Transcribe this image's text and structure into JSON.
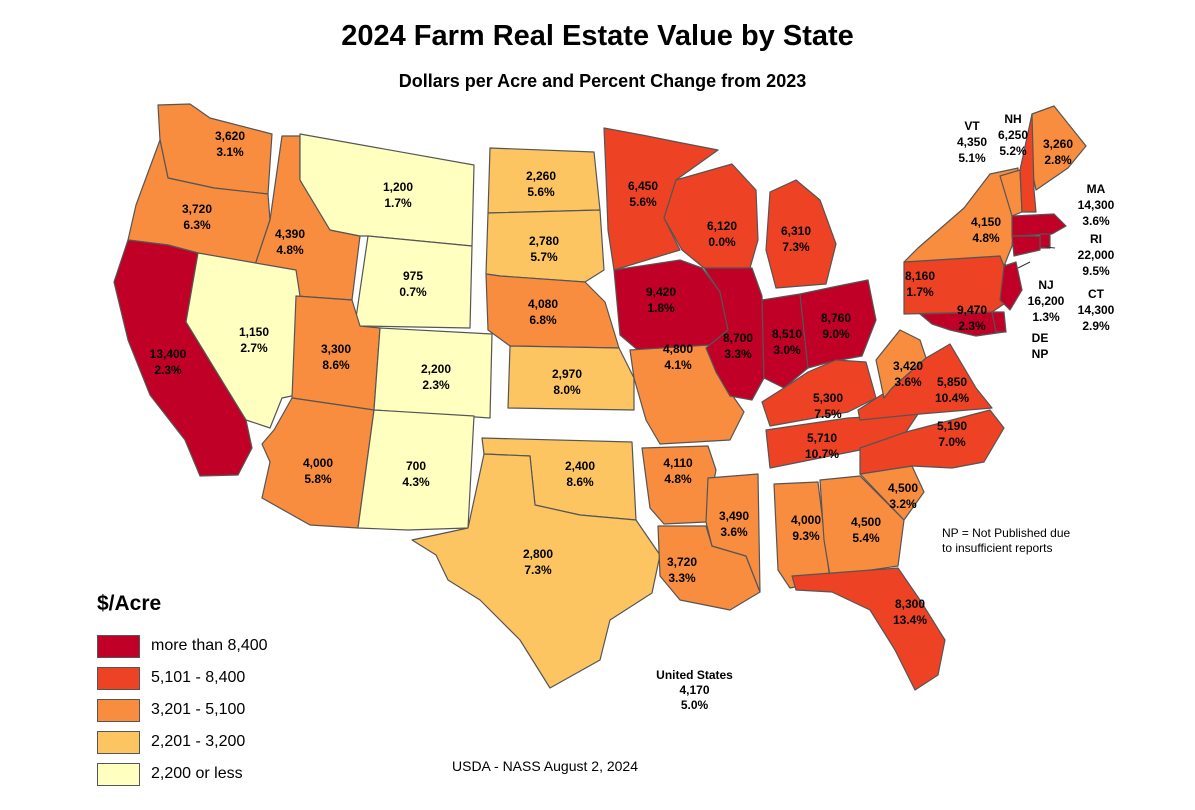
{
  "title": "2024 Farm Real Estate Value by State",
  "subtitle": "Dollars per Acre and Percent Change from 2023",
  "legend": {
    "title": "$/Acre",
    "items": [
      {
        "label": "more than 8,400",
        "color": "#c00026"
      },
      {
        "label": "5,101 - 8,400",
        "color": "#ee4224"
      },
      {
        "label": "3,201 - 5,100",
        "color": "#f88d3f"
      },
      {
        "label": "2,201 - 3,200",
        "color": "#fdc562"
      },
      {
        "label": "2,200 or less",
        "color": "#ffffbf"
      }
    ]
  },
  "note": {
    "line1": "NP = Not Published due",
    "line2": "to insufficient reports"
  },
  "us_summary": {
    "label": "United States",
    "value": "4,170",
    "change": "5.0%"
  },
  "source": "USDA - NASS August 2, 2024",
  "states": [
    {
      "abbr": "WA",
      "value": "3,620",
      "change": "3.1%",
      "tier": 2
    },
    {
      "abbr": "OR",
      "value": "3,720",
      "change": "6.3%",
      "tier": 2
    },
    {
      "abbr": "CA",
      "value": "13,400",
      "change": "2.3%",
      "tier": 0
    },
    {
      "abbr": "ID",
      "value": "4,390",
      "change": "4.8%",
      "tier": 2
    },
    {
      "abbr": "NV",
      "value": "1,150",
      "change": "2.7%",
      "tier": 4
    },
    {
      "abbr": "MT",
      "value": "1,200",
      "change": "1.7%",
      "tier": 4
    },
    {
      "abbr": "WY",
      "value": "975",
      "change": "0.7%",
      "tier": 4
    },
    {
      "abbr": "UT",
      "value": "3,300",
      "change": "8.6%",
      "tier": 2
    },
    {
      "abbr": "AZ",
      "value": "4,000",
      "change": "5.8%",
      "tier": 2
    },
    {
      "abbr": "CO",
      "value": "2,200",
      "change": "2.3%",
      "tier": 4
    },
    {
      "abbr": "NM",
      "value": "700",
      "change": "4.3%",
      "tier": 4
    },
    {
      "abbr": "ND",
      "value": "2,260",
      "change": "5.6%",
      "tier": 3
    },
    {
      "abbr": "SD",
      "value": "2,780",
      "change": "5.7%",
      "tier": 3
    },
    {
      "abbr": "NE",
      "value": "4,080",
      "change": "6.8%",
      "tier": 2
    },
    {
      "abbr": "KS",
      "value": "2,970",
      "change": "8.0%",
      "tier": 3
    },
    {
      "abbr": "OK",
      "value": "2,400",
      "change": "8.6%",
      "tier": 3
    },
    {
      "abbr": "TX",
      "value": "2,800",
      "change": "7.3%",
      "tier": 3
    },
    {
      "abbr": "MN",
      "value": "6,450",
      "change": "5.6%",
      "tier": 1
    },
    {
      "abbr": "IA",
      "value": "9,420",
      "change": "1.8%",
      "tier": 0
    },
    {
      "abbr": "MO",
      "value": "4,800",
      "change": "4.1%",
      "tier": 2
    },
    {
      "abbr": "AR",
      "value": "4,110",
      "change": "4.8%",
      "tier": 2
    },
    {
      "abbr": "LA",
      "value": "3,720",
      "change": "3.3%",
      "tier": 2
    },
    {
      "abbr": "WI",
      "value": "6,120",
      "change": "0.0%",
      "tier": 1
    },
    {
      "abbr": "MI",
      "value": "6,310",
      "change": "7.3%",
      "tier": 1
    },
    {
      "abbr": "IL",
      "value": "8,700",
      "change": "3.3%",
      "tier": 0
    },
    {
      "abbr": "IN",
      "value": "8,510",
      "change": "3.0%",
      "tier": 0
    },
    {
      "abbr": "OH",
      "value": "8,760",
      "change": "9.0%",
      "tier": 0
    },
    {
      "abbr": "KY",
      "value": "5,300",
      "change": "7.5%",
      "tier": 1
    },
    {
      "abbr": "TN",
      "value": "5,710",
      "change": "10.7%",
      "tier": 1
    },
    {
      "abbr": "MS",
      "value": "3,490",
      "change": "3.6%",
      "tier": 2
    },
    {
      "abbr": "AL",
      "value": "4,000",
      "change": "9.3%",
      "tier": 2
    },
    {
      "abbr": "GA",
      "value": "4,500",
      "change": "5.4%",
      "tier": 2
    },
    {
      "abbr": "FL",
      "value": "8,300",
      "change": "13.4%",
      "tier": 1
    },
    {
      "abbr": "SC",
      "value": "4,500",
      "change": "3.2%",
      "tier": 2
    },
    {
      "abbr": "NC",
      "value": "5,190",
      "change": "7.0%",
      "tier": 1
    },
    {
      "abbr": "VA",
      "value": "5,850",
      "change": "10.4%",
      "tier": 1
    },
    {
      "abbr": "WV",
      "value": "3,420",
      "change": "3.6%",
      "tier": 2
    },
    {
      "abbr": "PA",
      "value": "8,160",
      "change": "1.7%",
      "tier": 1
    },
    {
      "abbr": "MD",
      "value": "9,470",
      "change": "2.3%",
      "tier": 0
    },
    {
      "abbr": "NY",
      "value": "4,150",
      "change": "4.8%",
      "tier": 2
    },
    {
      "abbr": "ME",
      "value": "3,260",
      "change": "2.8%",
      "tier": 2
    },
    {
      "abbr": "VT",
      "name": "VT",
      "value": "4,350",
      "change": "5.1%",
      "tier": 2
    },
    {
      "abbr": "NH",
      "name": "NH",
      "value": "6,250",
      "change": "5.2%",
      "tier": 1
    },
    {
      "abbr": "MA",
      "name": "MA",
      "value": "14,300",
      "change": "3.6%",
      "tier": 0
    },
    {
      "abbr": "RI",
      "name": "RI",
      "value": "22,000",
      "change": "9.5%",
      "tier": 0
    },
    {
      "abbr": "CT",
      "name": "CT",
      "value": "14,300",
      "change": "2.9%",
      "tier": 0
    },
    {
      "abbr": "NJ",
      "name": "NJ",
      "value": "16,200",
      "change": "1.3%",
      "tier": 0
    },
    {
      "abbr": "DE",
      "name": "DE",
      "value": "NP",
      "change": "",
      "tier": 0
    }
  ]
}
